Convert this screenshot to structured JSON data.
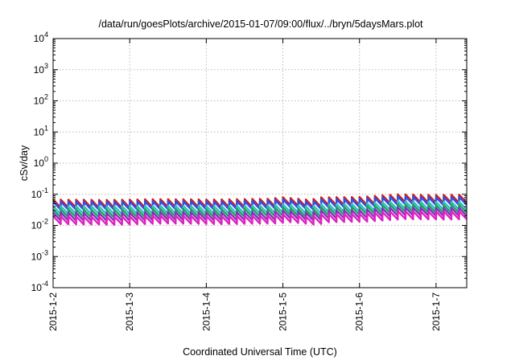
{
  "chart_data": {
    "type": "line",
    "title": "/data/run/goesPlots/archive/2015-01-07/09:00/flux/../bryn/5daysMars.plot",
    "xlabel": "Coordinated Universal Time (UTC)",
    "ylabel": "cSv/day",
    "y_scale": "log",
    "ylim": [
      0.0001,
      10000
    ],
    "xlim": [
      0,
      5.4
    ],
    "grid": true,
    "x_ticks": [
      {
        "value": 0,
        "label": "2015-1-2"
      },
      {
        "value": 1,
        "label": "2015-1-3"
      },
      {
        "value": 2,
        "label": "2015-1-4"
      },
      {
        "value": 3,
        "label": "2015-1-5"
      },
      {
        "value": 4,
        "label": "2015-1-6"
      },
      {
        "value": 5,
        "label": "2015-1-7"
      }
    ],
    "y_ticks": [
      {
        "exp": "-4",
        "value": 0.0001
      },
      {
        "exp": "-3",
        "value": 0.001
      },
      {
        "exp": "-2",
        "value": 0.01
      },
      {
        "exp": "-1",
        "value": 0.1
      },
      {
        "exp": "0",
        "value": 1
      },
      {
        "exp": "1",
        "value": 10
      },
      {
        "exp": "2",
        "value": 100
      },
      {
        "exp": "3",
        "value": 1000
      },
      {
        "exp": "4",
        "value": 10000
      }
    ],
    "series": [
      {
        "color": "#cc2020",
        "peaks": [
          [
            0,
            0.068
          ],
          [
            0.7,
            0.066
          ],
          [
            1.4,
            0.07
          ],
          [
            2.1,
            0.068
          ],
          [
            2.8,
            0.072
          ],
          [
            3.0,
            0.08
          ],
          [
            3.35,
            0.066
          ],
          [
            3.5,
            0.08
          ],
          [
            4.0,
            0.082
          ],
          [
            4.5,
            0.1
          ],
          [
            5.0,
            0.095
          ],
          [
            5.4,
            0.098
          ]
        ]
      },
      {
        "color": "#3050e8",
        "peaks": [
          [
            0,
            0.058
          ],
          [
            0.7,
            0.057
          ],
          [
            1.4,
            0.06
          ],
          [
            2.1,
            0.058
          ],
          [
            2.8,
            0.062
          ],
          [
            3.0,
            0.068
          ],
          [
            3.35,
            0.056
          ],
          [
            3.5,
            0.068
          ],
          [
            4.0,
            0.07
          ],
          [
            4.5,
            0.085
          ],
          [
            5.0,
            0.08
          ],
          [
            5.4,
            0.083
          ]
        ]
      },
      {
        "color": "#30c0c0",
        "peaks": [
          [
            0,
            0.042
          ],
          [
            0.7,
            0.041
          ],
          [
            1.4,
            0.043
          ],
          [
            2.1,
            0.042
          ],
          [
            2.8,
            0.044
          ],
          [
            3.0,
            0.048
          ],
          [
            3.35,
            0.04
          ],
          [
            3.5,
            0.048
          ],
          [
            4.0,
            0.05
          ],
          [
            4.5,
            0.06
          ],
          [
            5.0,
            0.057
          ],
          [
            5.4,
            0.059
          ]
        ]
      },
      {
        "color": "#20a060",
        "peaks": [
          [
            0,
            0.033
          ],
          [
            0.7,
            0.032
          ],
          [
            1.4,
            0.034
          ],
          [
            2.1,
            0.033
          ],
          [
            2.8,
            0.035
          ],
          [
            3.0,
            0.038
          ],
          [
            3.35,
            0.031
          ],
          [
            3.5,
            0.038
          ],
          [
            4.0,
            0.04
          ],
          [
            4.5,
            0.048
          ],
          [
            5.0,
            0.045
          ],
          [
            5.4,
            0.047
          ]
        ]
      },
      {
        "color": "#8030c0",
        "peaks": [
          [
            0,
            0.026
          ],
          [
            0.7,
            0.025
          ],
          [
            1.4,
            0.027
          ],
          [
            2.1,
            0.026
          ],
          [
            2.8,
            0.027
          ],
          [
            3.0,
            0.03
          ],
          [
            3.35,
            0.025
          ],
          [
            3.5,
            0.03
          ],
          [
            4.0,
            0.031
          ],
          [
            4.5,
            0.038
          ],
          [
            5.0,
            0.036
          ],
          [
            5.4,
            0.037
          ]
        ]
      },
      {
        "color": "#e020c0",
        "peaks": [
          [
            0,
            0.02
          ],
          [
            0.7,
            0.019
          ],
          [
            1.4,
            0.021
          ],
          [
            2.1,
            0.02
          ],
          [
            2.8,
            0.021
          ],
          [
            3.0,
            0.023
          ],
          [
            3.35,
            0.019
          ],
          [
            3.5,
            0.023
          ],
          [
            4.0,
            0.024
          ],
          [
            4.5,
            0.029
          ],
          [
            5.0,
            0.028
          ],
          [
            5.4,
            0.029
          ]
        ]
      }
    ],
    "sawtooth": {
      "period_days": 0.1,
      "drop_ratio": 0.55
    }
  }
}
